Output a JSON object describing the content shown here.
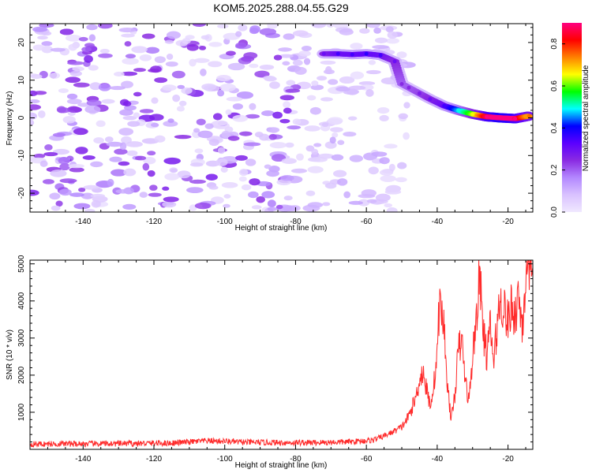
{
  "title": "KOM5.2025.288.04.55.G29",
  "chart_data": [
    {
      "type": "heatmap",
      "panel": "spectrogram",
      "xlabel": "Height of straight line (km)",
      "ylabel": "Frequency (Hz)",
      "xlim": [
        -155,
        -13
      ],
      "ylim": [
        -25,
        25
      ],
      "xticks": [
        -140,
        -120,
        -100,
        -80,
        -60,
        -40,
        -20
      ],
      "yticks": [
        -20,
        -10,
        0,
        10,
        20
      ],
      "ridge": {
        "name": "signal ridge",
        "x": [
          -72,
          -68,
          -64,
          -60,
          -56,
          -52,
          -50,
          -48,
          -45,
          -42,
          -38,
          -34,
          -30,
          -26,
          -22,
          -18,
          -14
        ],
        "y": [
          17,
          17,
          16.8,
          17,
          16.6,
          15,
          9,
          8,
          6.5,
          5,
          3.2,
          2,
          1,
          0.3,
          0,
          -0.2,
          0.5
        ],
        "amplitude": [
          0.25,
          0.3,
          0.3,
          0.32,
          0.3,
          0.25,
          0.2,
          0.2,
          0.22,
          0.25,
          0.3,
          0.45,
          0.6,
          0.85,
          0.95,
          0.9,
          0.7
        ]
      },
      "noise_region_xlim": [
        -155,
        -48
      ]
    },
    {
      "type": "colorbar",
      "label": "Normalized spectral amplitude",
      "range": [
        0.0,
        0.9
      ],
      "ticks": [
        0.0,
        0.2,
        0.4,
        0.6,
        0.8
      ],
      "tick_labels": [
        "0.0",
        "0.2",
        "0.4",
        "0.6",
        "0.8"
      ],
      "colors": [
        "#f0e8ff",
        "#d9c2ff",
        "#b388ff",
        "#8a2be2",
        "#5b00ff",
        "#0000ff",
        "#00ffff",
        "#00ff00",
        "#ffff00",
        "#ff8000",
        "#ff0000",
        "#ff0080"
      ]
    },
    {
      "type": "line",
      "panel": "snr",
      "xlabel": "Height of straight line (km)",
      "ylabel": "SNR (10 * v/v)",
      "xlim": [
        -155,
        -13
      ],
      "ylim": [
        0,
        5100
      ],
      "xticks": [
        -140,
        -120,
        -100,
        -80,
        -60,
        -40,
        -20
      ],
      "yticks": [
        1000,
        2000,
        3000,
        4000,
        5000
      ],
      "series": [
        {
          "name": "SNR",
          "color": "#ff2a2a",
          "x": [
            -155,
            -145,
            -135,
            -125,
            -115,
            -105,
            -100,
            -95,
            -85,
            -75,
            -65,
            -58,
            -54,
            -50,
            -48,
            -46,
            -45,
            -44,
            -43,
            -42,
            -41,
            -40,
            -39.5,
            -39,
            -38,
            -37,
            -36,
            -35,
            -34,
            -33,
            -32,
            -31,
            -30,
            -29,
            -28,
            -27,
            -26,
            -25,
            -24,
            -23,
            -22,
            -21,
            -20,
            -19,
            -18,
            -17,
            -16,
            -15,
            -14,
            -13
          ],
          "y": [
            140,
            150,
            150,
            160,
            170,
            230,
            220,
            190,
            180,
            180,
            200,
            250,
            400,
            600,
            900,
            1400,
            1900,
            2100,
            1600,
            1200,
            1700,
            2600,
            3700,
            3900,
            3200,
            1600,
            800,
            1500,
            2700,
            2900,
            1800,
            1300,
            2500,
            3500,
            4700,
            3200,
            2500,
            3300,
            2300,
            3500,
            4000,
            3800,
            3400,
            3900,
            3600,
            4200,
            3300,
            4600,
            4400,
            4900
          ]
        }
      ]
    }
  ]
}
